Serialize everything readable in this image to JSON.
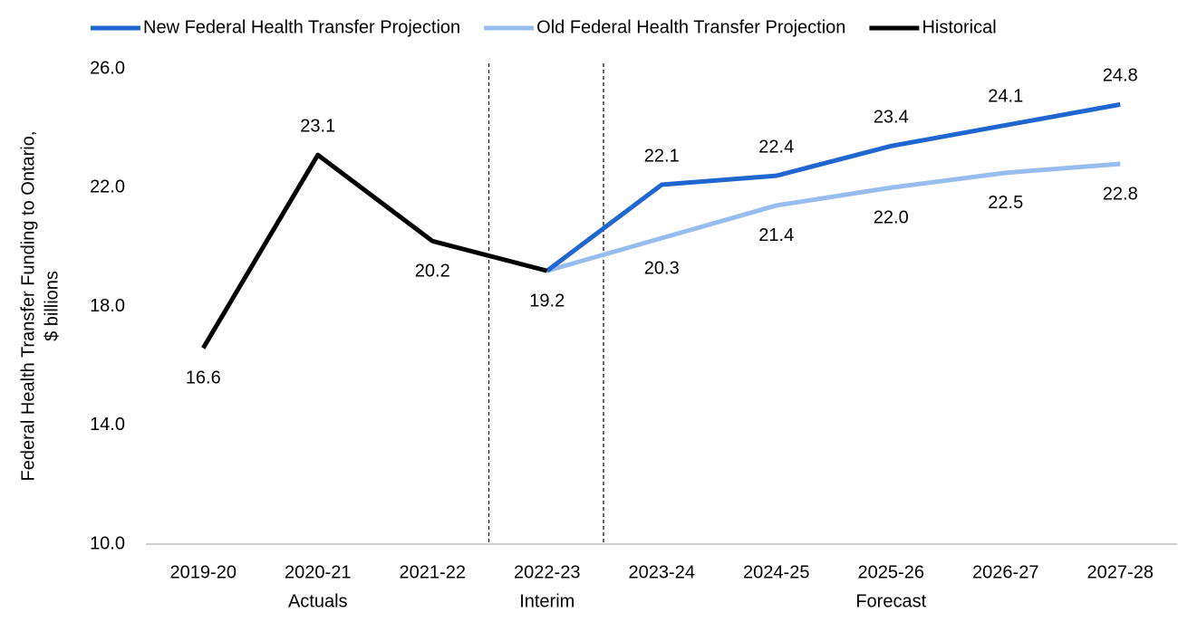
{
  "chart_data": {
    "type": "line",
    "y_label_lines": [
      "Federal Health Transfer Funding to Ontario,",
      "$ billions"
    ],
    "categories": [
      "2019-20",
      "2020-21",
      "2021-22",
      "2022-23",
      "2023-24",
      "2024-25",
      "2025-26",
      "2026-27",
      "2027-28"
    ],
    "category_groups": [
      {
        "label": "Actuals",
        "start": 0,
        "end": 2
      },
      {
        "label": "Interim",
        "start": 3,
        "end": 3
      },
      {
        "label": "Forecast",
        "start": 4,
        "end": 8
      }
    ],
    "series": [
      {
        "name": "New Federal Health Transfer Projection",
        "color": "#1f66d1",
        "values": [
          null,
          null,
          null,
          19.2,
          22.1,
          22.4,
          23.4,
          24.1,
          24.8
        ],
        "value_labels": [
          null,
          null,
          null,
          null,
          "22.1",
          "22.4",
          "23.4",
          "24.1",
          "24.8"
        ]
      },
      {
        "name": "Old Federal Health Transfer Projection",
        "color": "#97bdf0",
        "values": [
          null,
          null,
          null,
          19.2,
          20.3,
          21.4,
          22.0,
          22.5,
          22.8
        ],
        "value_labels": [
          null,
          null,
          null,
          null,
          "20.3",
          "21.4",
          "22.0",
          "22.5",
          "22.8"
        ]
      },
      {
        "name": "Historical",
        "color": "#000000",
        "values": [
          16.6,
          23.1,
          20.2,
          19.2,
          null,
          null,
          null,
          null,
          null
        ],
        "value_labels": [
          "16.6",
          "23.1",
          "20.2",
          "19.2",
          null,
          null,
          null,
          null,
          null
        ]
      }
    ],
    "ylim": [
      10,
      26
    ],
    "yticks": [
      {
        "value": 10,
        "label": "10.0"
      },
      {
        "value": 14,
        "label": "14.0"
      },
      {
        "value": 18,
        "label": "18.0"
      },
      {
        "value": 22,
        "label": "22.0"
      },
      {
        "value": 26,
        "label": "26.0"
      }
    ],
    "legend": "top",
    "grid": false
  }
}
